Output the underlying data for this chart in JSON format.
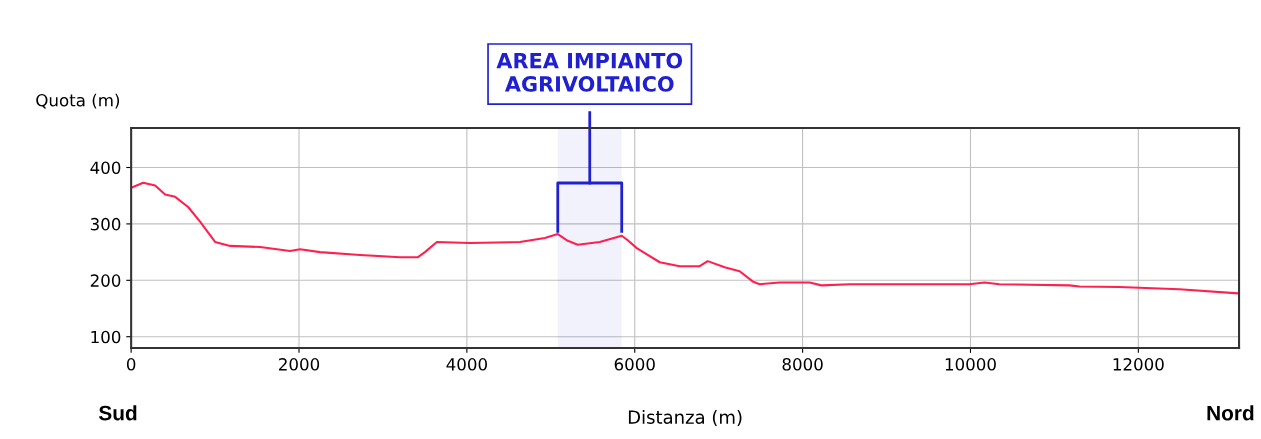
{
  "chart_data": {
    "type": "line",
    "xlabel": "Distanza (m)",
    "ylabel": "Quota (m)",
    "x": [
      0,
      143,
      286,
      405,
      524,
      679,
      821,
      1000,
      1179,
      1536,
      1893,
      2012,
      2250,
      2726,
      3202,
      3417,
      3500,
      3643,
      4036,
      4631,
      4929,
      5083,
      5202,
      5321,
      5583,
      5845,
      5917,
      6024,
      6298,
      6536,
      6774,
      6869,
      7071,
      7250,
      7405,
      7488,
      7726,
      8083,
      8226,
      8560,
      9988,
      10167,
      10345,
      11179,
      11298,
      11774,
      12488,
      13179
    ],
    "series": [
      {
        "color": "#ff2050",
        "values": [
          364,
          373,
          368,
          352,
          348,
          330,
          304,
          268,
          261,
          259,
          252,
          255,
          250,
          245,
          241,
          241,
          250,
          268,
          266,
          268,
          275,
          282,
          270,
          263,
          268,
          279,
          271,
          257,
          232,
          225,
          225,
          234,
          223,
          216,
          198,
          193,
          196,
          196,
          191,
          193,
          193,
          196,
          193,
          191,
          189,
          188,
          184,
          177
        ]
      }
    ],
    "xlim": [
      0,
      13200
    ],
    "xticks": [
      0,
      2000,
      4000,
      6000,
      8000,
      10000,
      12000
    ],
    "ylim": [
      80,
      470
    ],
    "yticks": [
      100,
      200,
      300,
      400
    ],
    "grid": true,
    "marker": "none",
    "line_style": "solid",
    "bands": [
      {
        "axis": "x",
        "from": 5083,
        "to": 5845,
        "label": "AREA IMPIANTO\nAGRIVOLTAICO",
        "color": "#2020d0"
      }
    ],
    "annotations": [
      "Sud",
      "Nord"
    ]
  }
}
